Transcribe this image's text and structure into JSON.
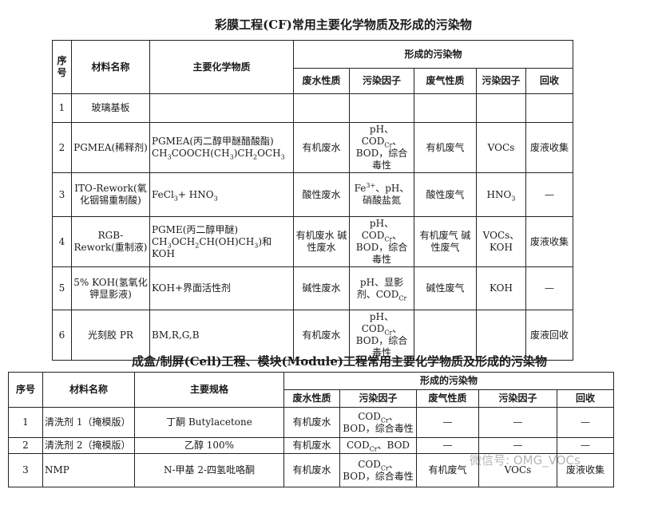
{
  "table1": {
    "title": "彩膜工程(CF)常用主要化学物质及形成的污染物",
    "header": {
      "no": "序号",
      "material": "材料名称",
      "chemicals": "主要化学物质",
      "group": "形成的污染物",
      "sub": [
        "废水性质",
        "污染因子",
        "废气性质",
        "污染因子",
        "回收"
      ]
    },
    "rows": [
      [
        "1",
        "玻璃基板",
        null,
        null,
        null,
        null,
        null,
        null
      ],
      [
        "2",
        "PGMEA(稀释剂)",
        [
          "PGMEA(丙二醇甲醚醋酸酯) CH",
          {
            "sub": "3"
          },
          "COOCH(CH",
          {
            "sub": "3"
          },
          ")CH",
          {
            "sub": "2"
          },
          "OCH",
          {
            "sub": "3"
          }
        ],
        "有机废水",
        [
          "pH、COD",
          {
            "sub": "Cr"
          },
          "、BOD，综合毒性"
        ],
        "有机废气",
        "VOCs",
        "废液收集"
      ],
      [
        "3",
        "ITO-Rework(氧化铟锡重制酸)",
        [
          "FeCl",
          {
            "sub": "3"
          },
          "+ HNO",
          {
            "sub": "3"
          }
        ],
        "酸性废水",
        [
          "Fe",
          {
            "sup": "3+"
          },
          "、pH、硝酸盐氮"
        ],
        "酸性废气",
        [
          "HNO",
          {
            "sub": "3"
          }
        ],
        "—"
      ],
      [
        "4",
        "RGB-Rework(重制液)",
        [
          "PGME(丙二醇甲醚) CH",
          {
            "sub": "3"
          },
          "OCH",
          {
            "sub": "2"
          },
          "CH(OH)CH",
          {
            "sub": "3"
          },
          ")和 KOH"
        ],
        "有机废水 碱性废水",
        [
          "pH、COD",
          {
            "sub": "Cr"
          },
          "、BOD，综合毒性"
        ],
        "有机废气 碱性废气",
        "VOCs、KOH",
        "废液收集"
      ],
      [
        "5",
        "5% KOH(氢氧化钾显影液)",
        "KOH+界面活性剂",
        "碱性废水",
        [
          "pH、显影剂、COD",
          {
            "sub": "Cr"
          }
        ],
        "碱性废气",
        "KOH",
        "—"
      ],
      [
        "6",
        "光刻胶 PR",
        "BM,R,G,B",
        "有机废水",
        [
          "pH、COD",
          {
            "sub": "Cr"
          },
          "、BOD，综合毒性"
        ],
        null,
        null,
        "废液回收"
      ]
    ]
  },
  "table2": {
    "title": "成盒/制屏(Cell)工程、模块(Module)工程常用主要化学物质及形成的污染物",
    "header": {
      "no": "序号",
      "material": "材料名称",
      "chemicals": "主要规格",
      "group": "形成的污染物",
      "sub": [
        "废水性质",
        "污染因子",
        "废气性质",
        "污染因子",
        "回收"
      ]
    },
    "rows": [
      [
        "1",
        "清洗剂 1（掩模版）",
        "丁酮 Butylacetone",
        "有机废水",
        [
          "COD",
          {
            "sub": "Cr"
          },
          "、BOD，综合毒性"
        ],
        "—",
        "—",
        "—"
      ],
      [
        "2",
        "清洗剂 2（掩模版）",
        "乙醇 100%",
        "有机废水",
        [
          "COD",
          {
            "sub": "Cr"
          },
          "、BOD"
        ],
        "—",
        "—",
        "—"
      ],
      [
        "3",
        "NMP",
        "N-甲基 2-四氢吡咯酮",
        "有机废水",
        [
          "COD",
          {
            "sub": "Cr"
          },
          "、BOD，综合毒性"
        ],
        "有机废气",
        "VOCs",
        "废液收集"
      ]
    ]
  },
  "watermark": "微信号: OMG_VOCs"
}
